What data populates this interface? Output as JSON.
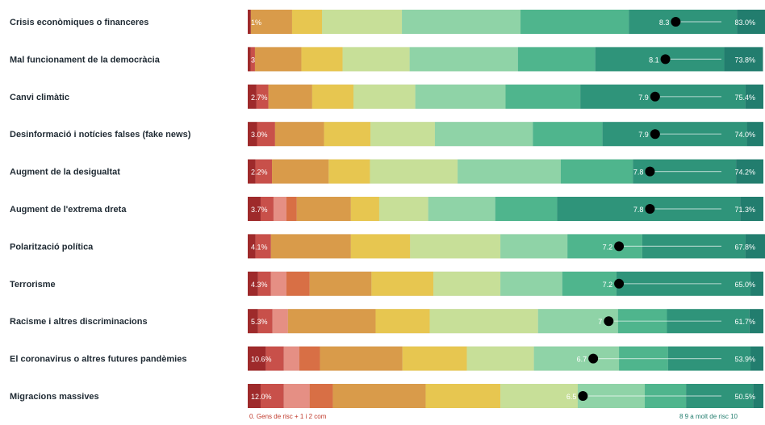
{
  "chart_data": {
    "type": "bar",
    "stacked": true,
    "orientation": "horizontal",
    "scale_max": 10,
    "colors": [
      "#9e2a2b",
      "#c8504a",
      "#e58f84",
      "#f2b9a5",
      "#d86f45",
      "#d99b4a",
      "#e7c650",
      "#c7df98",
      "#8fd3a7",
      "#4fb58d",
      "#2f947a",
      "#227d6e"
    ],
    "categories": [
      "Crisis econòmiques o financeres",
      "Mal funcionament de la democràcia",
      "Canvi climàtic",
      "Desinformació i notícies falses (fake news)",
      "Augment de la desigualtat",
      "Augment de l'extrema dreta",
      "Polarització política",
      "Terrorisme",
      "Racisme i altres discriminacions",
      "El coronavirus o altres futures pandèmies",
      "Migracions massives"
    ],
    "rows": [
      {
        "left_label": "1%",
        "mean": "8.3",
        "mean_value": 8.3,
        "right_label": "83.0%",
        "segments": [
          0.6,
          0.0,
          0.0,
          0.0,
          0.0,
          8.0,
          5.8,
          15.5,
          23.0,
          21.0,
          21.0,
          6.5
        ]
      },
      {
        "left_label": "3",
        "mean": "8.1",
        "mean_value": 8.1,
        "right_label": "73.8%",
        "segments": [
          0.6,
          0.8,
          0.0,
          0.0,
          0.0,
          9.0,
          8.0,
          13.0,
          21.0,
          15.0,
          25.0,
          7.5
        ]
      },
      {
        "left_label": "2.7%",
        "mean": "7.9",
        "mean_value": 7.9,
        "right_label": "75.4%",
        "segments": [
          1.7,
          2.3,
          0.0,
          0.0,
          0.0,
          8.5,
          8.0,
          12.0,
          17.5,
          14.5,
          32.0,
          3.5
        ]
      },
      {
        "left_label": "3.0%",
        "mean": "7.9",
        "mean_value": 7.9,
        "right_label": "74.0%",
        "segments": [
          1.8,
          3.5,
          0.0,
          0.0,
          0.0,
          9.5,
          9.0,
          12.5,
          19.0,
          13.5,
          28.0,
          3.2
        ]
      },
      {
        "left_label": "2.2%",
        "mean": "7.8",
        "mean_value": 7.8,
        "right_label": "74.2%",
        "segments": [
          1.5,
          3.2,
          0.0,
          0.0,
          0.0,
          11.0,
          8.0,
          17.0,
          20.0,
          14.0,
          20.0,
          5.3
        ]
      },
      {
        "left_label": "3.7%",
        "mean": "7.8",
        "mean_value": 7.8,
        "right_label": "71.3%",
        "segments": [
          2.5,
          2.5,
          2.5,
          0.0,
          2.0,
          10.5,
          5.5,
          9.5,
          13.0,
          12.0,
          35.5,
          4.5
        ]
      },
      {
        "left_label": "4.1%",
        "mean": "7.2",
        "mean_value": 7.2,
        "right_label": "67.8%",
        "segments": [
          1.5,
          3.0,
          0.0,
          0.0,
          0.0,
          15.5,
          11.5,
          17.5,
          13.0,
          14.5,
          20.0,
          4.0
        ]
      },
      {
        "left_label": "4.3%",
        "mean": "7.2",
        "mean_value": 7.2,
        "right_label": "65.0%",
        "segments": [
          2.0,
          2.5,
          3.0,
          0.0,
          4.5,
          12.0,
          12.0,
          13.0,
          12.0,
          10.5,
          26.0,
          2.5
        ]
      },
      {
        "left_label": "5.3%",
        "mean": "7",
        "mean_value": 7.0,
        "right_label": "61.7%",
        "segments": [
          2.0,
          2.8,
          3.0,
          0.0,
          0.0,
          17.0,
          10.5,
          21.0,
          15.5,
          9.5,
          16.0,
          2.7
        ]
      },
      {
        "left_label": "10.6%",
        "mean": "6.7",
        "mean_value": 6.7,
        "right_label": "53.9%",
        "segments": [
          3.5,
          3.5,
          3.0,
          0.0,
          4.0,
          16.0,
          12.5,
          13.0,
          16.5,
          9.5,
          16.0,
          2.5
        ]
      },
      {
        "left_label": "12.0%",
        "mean": "6.5",
        "mean_value": 6.5,
        "right_label": "50.5%",
        "segments": [
          2.5,
          4.5,
          5.0,
          0.0,
          4.5,
          18.0,
          14.5,
          15.0,
          13.0,
          8.0,
          13.0,
          2.0
        ]
      }
    ],
    "legend": {
      "left": "0. Gens de risc + 1 i 2 com",
      "right": "8 9 a molt de risc 10"
    }
  }
}
